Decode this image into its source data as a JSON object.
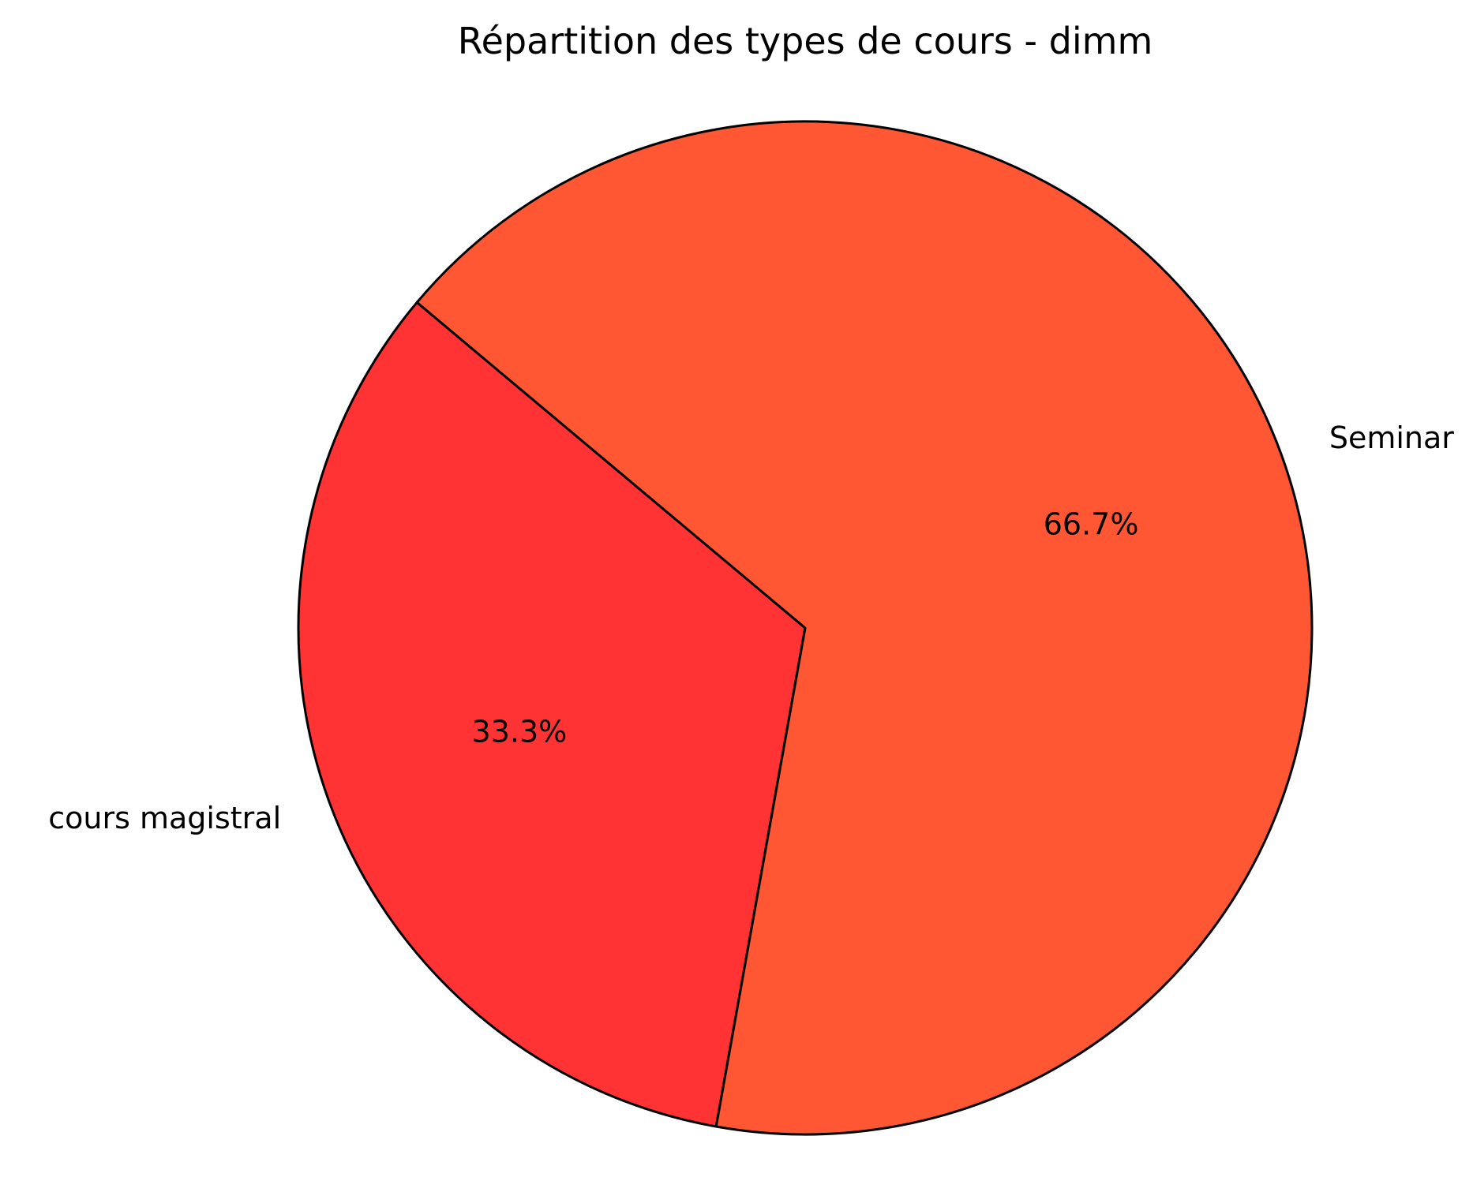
{
  "chart_data": {
    "type": "pie",
    "title": "Répartition des types de cours - dimm",
    "slices": [
      {
        "label": "cours magistral",
        "value": 33.3,
        "pct_label": "33.3%",
        "color": "#FF3333"
      },
      {
        "label": "Seminar",
        "value": 66.7,
        "pct_label": "66.7%",
        "color": "#FF5733"
      }
    ],
    "start_angle_deg": 140,
    "direction": "counterclockwise",
    "edge_color": "#000000"
  }
}
